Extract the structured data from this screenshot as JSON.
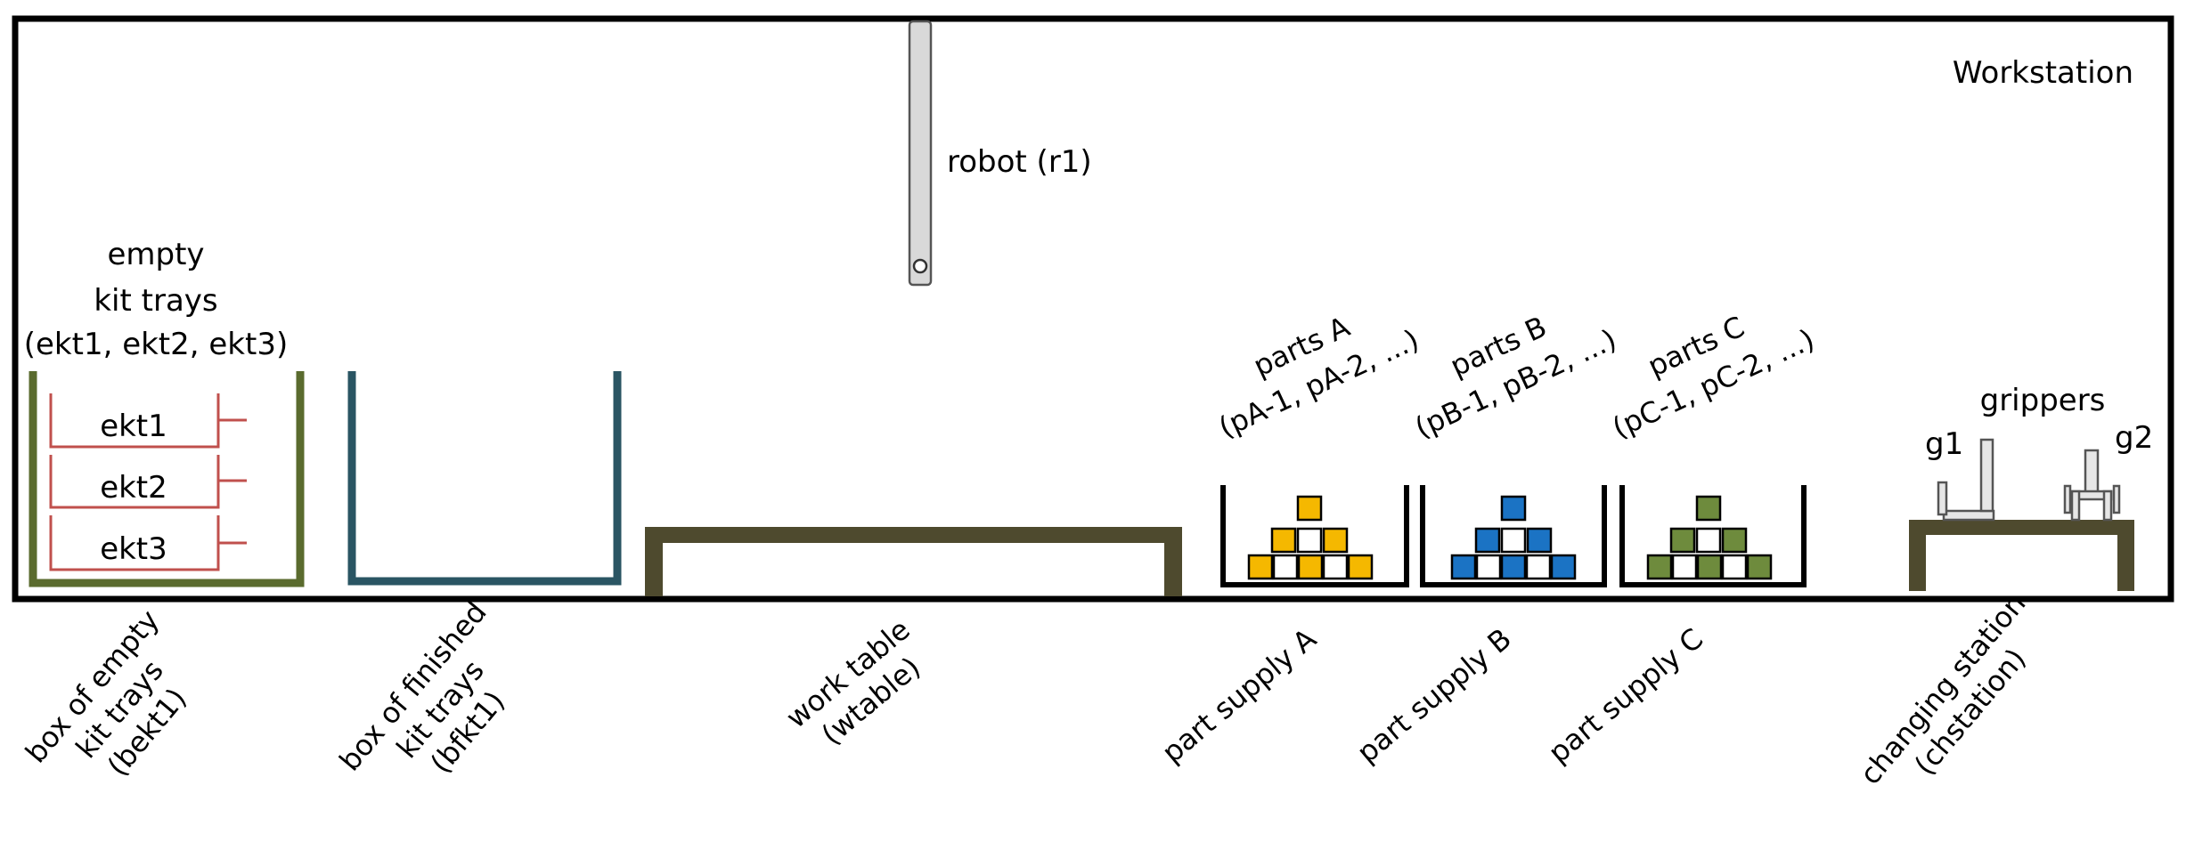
{
  "title": "Workstation",
  "robot": {
    "label": "robot (r1)"
  },
  "empty_trays_label": [
    "empty",
    "kit trays",
    "(ekt1, ekt2, ekt3)"
  ],
  "trays": [
    "ekt1",
    "ekt2",
    "ekt3"
  ],
  "parts": [
    {
      "line1": "parts A",
      "line2": "(pA-1, pA-2, ...)",
      "color": "#F5B800"
    },
    {
      "line1": "parts B",
      "line2": "(pB-1, pB-2, ...)",
      "color": "#1B73C4"
    },
    {
      "line1": "parts C",
      "line2": "(pC-1, pC-2, ...)",
      "color": "#6E8B3D"
    }
  ],
  "grippers": {
    "label": "grippers",
    "g1": "g1",
    "g2": "g2"
  },
  "bottom_labels": [
    [
      "box of empty",
      "kit trays",
      "(bekt1)"
    ],
    [
      "box of finished",
      "kit trays",
      "(bfkt1)"
    ],
    [
      "work table",
      "(wtable)"
    ],
    [
      "part supply A"
    ],
    [
      "part supply B"
    ],
    [
      "part supply C"
    ],
    [
      "changing station",
      "(chstation)"
    ]
  ],
  "colors": {
    "border": "#000000",
    "box_empty": "#5A6B2E",
    "box_finished": "#2A5563",
    "table": "#4E4A2E",
    "tray_lines": "#C0504D",
    "robot_fill": "#D9D9D9",
    "gripper_fill": "#E6E6E6"
  }
}
